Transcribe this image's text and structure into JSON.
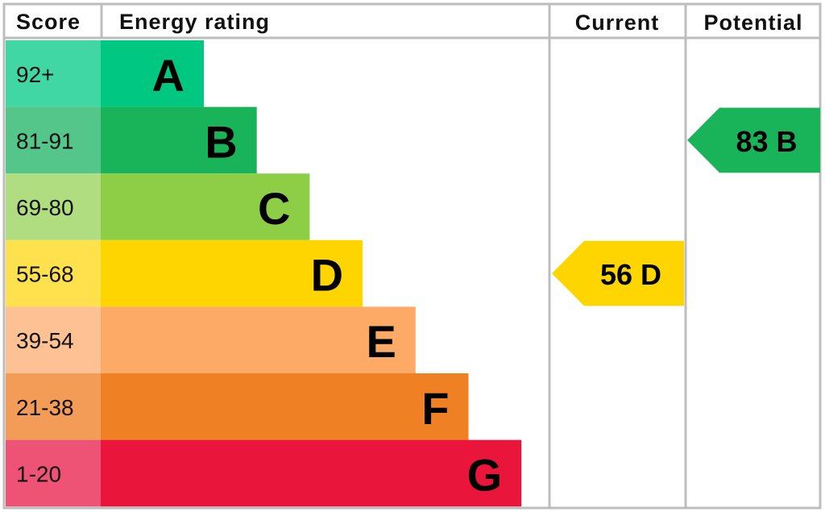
{
  "header": {
    "score": "Score",
    "rating": "Energy rating",
    "current": "Current",
    "potential": "Potential"
  },
  "bands": [
    {
      "score": "92+",
      "letter": "A",
      "color": "#00c781",
      "score_color": "#40d7a4"
    },
    {
      "score": "81-91",
      "letter": "B",
      "color": "#19b459",
      "score_color": "#55c689"
    },
    {
      "score": "69-80",
      "letter": "C",
      "color": "#8dce46",
      "score_color": "#b0dd80"
    },
    {
      "score": "55-68",
      "letter": "D",
      "color": "#ffd500",
      "score_color": "#ffe14d"
    },
    {
      "score": "39-54",
      "letter": "E",
      "color": "#fcaa65",
      "score_color": "#fdc193"
    },
    {
      "score": "21-38",
      "letter": "F",
      "color": "#ef8023",
      "score_color": "#f39c57"
    },
    {
      "score": "1-20",
      "letter": "G",
      "color": "#e9153b",
      "score_color": "#ee5274"
    }
  ],
  "current": {
    "score": 56,
    "rating": "D"
  },
  "potential": {
    "score": 83,
    "rating": "B"
  }
}
